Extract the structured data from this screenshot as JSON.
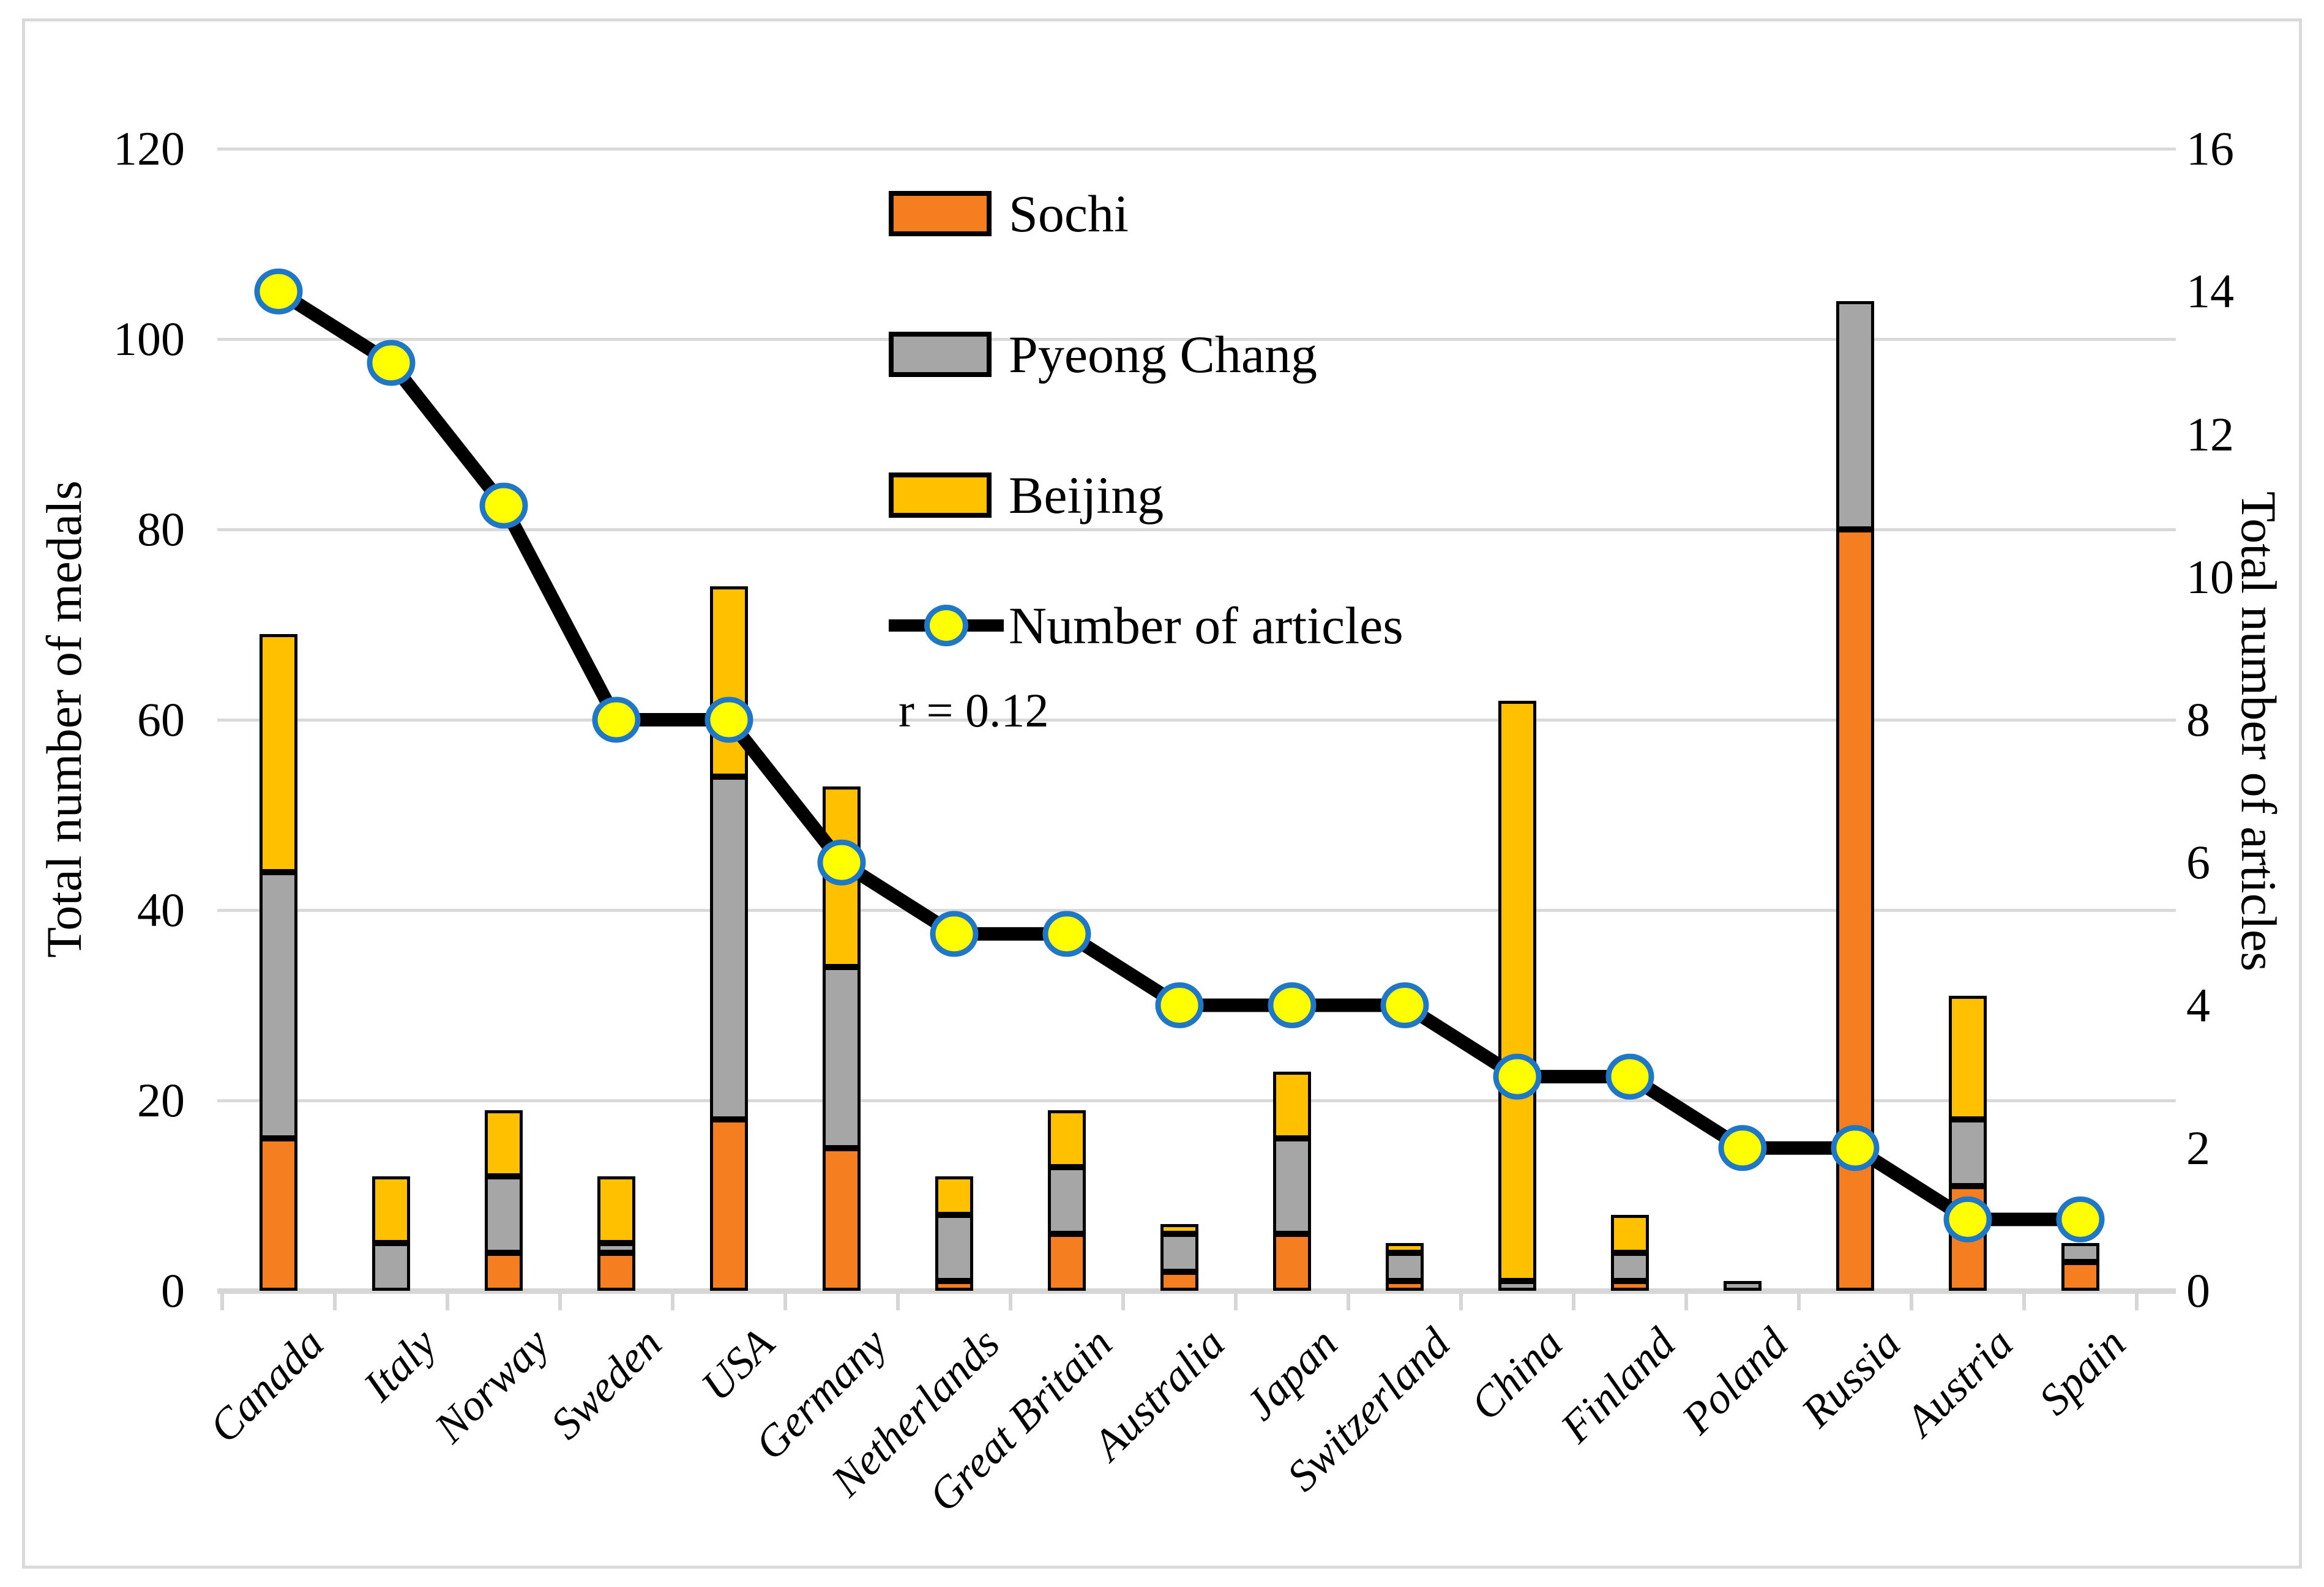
{
  "figure": {
    "background": "#ffffff",
    "border_color": "#d9d9d9",
    "gridline_color": "#d9d9d9"
  },
  "annotation": "r = 0.12",
  "legend": [
    {
      "label": "Sochi",
      "type": "bar",
      "color": "#F57E20"
    },
    {
      "label": "Pyeong Chang",
      "type": "bar",
      "color": "#A6A6A6"
    },
    {
      "label": "Beijing",
      "type": "bar",
      "color": "#FFC000"
    },
    {
      "label": "Number of articles",
      "type": "line",
      "color": "#000000",
      "marker_fill": "#FFFF00",
      "marker_stroke": "#2077C5"
    }
  ],
  "chart_data": {
    "type": "composite",
    "categories": [
      "Canada",
      "Italy",
      "Norway",
      "Sweden",
      "USA",
      "Germany",
      "Netherlands",
      "Great Britain",
      "Australia",
      "Japan",
      "Switzerland",
      "China",
      "Finland",
      "Poland",
      "Russia",
      "Austria",
      "Spain"
    ],
    "series": [
      {
        "name": "Sochi",
        "type": "bar",
        "stack": "medals",
        "color": "#F57E20",
        "values": [
          16,
          0,
          4,
          4,
          18,
          15,
          1,
          6,
          2,
          6,
          1,
          0,
          1,
          0,
          80,
          11,
          3
        ]
      },
      {
        "name": "Pyeong Chang",
        "type": "bar",
        "stack": "medals",
        "color": "#A6A6A6",
        "values": [
          28,
          5,
          8,
          1,
          36,
          19,
          7,
          7,
          4,
          10,
          3,
          1,
          3,
          1,
          24,
          7,
          2
        ]
      },
      {
        "name": "Beijing",
        "type": "bar",
        "stack": "medals",
        "color": "#FFC000",
        "values": [
          25,
          7,
          7,
          7,
          20,
          19,
          4,
          6,
          1,
          7,
          1,
          61,
          4,
          0,
          0,
          13,
          0
        ]
      },
      {
        "name": "Number of articles",
        "type": "line",
        "axis": "right",
        "color": "#000000",
        "marker_fill": "#FFFF00",
        "marker_stroke": "#2077C5",
        "values": [
          14,
          13,
          11,
          8,
          8,
          6,
          5,
          5,
          4,
          4,
          4,
          3,
          3,
          2,
          2,
          1,
          1
        ]
      }
    ],
    "stack_totals": [
      69,
      12,
      19,
      12,
      74,
      53,
      12,
      19,
      7,
      23,
      5,
      62,
      8,
      1,
      104,
      31,
      5
    ],
    "left_axis": {
      "title": "Total number of medals",
      "ticks": [
        0,
        20,
        40,
        60,
        80,
        100,
        120
      ],
      "range": [
        0,
        120
      ]
    },
    "right_axis": {
      "title": "Total number of articles",
      "ticks": [
        0,
        2,
        4,
        6,
        8,
        10,
        12,
        14,
        16
      ],
      "range": [
        0,
        16
      ]
    },
    "annotation": "r = 0.12",
    "grid": true,
    "legend_position": "upper-center-left"
  }
}
